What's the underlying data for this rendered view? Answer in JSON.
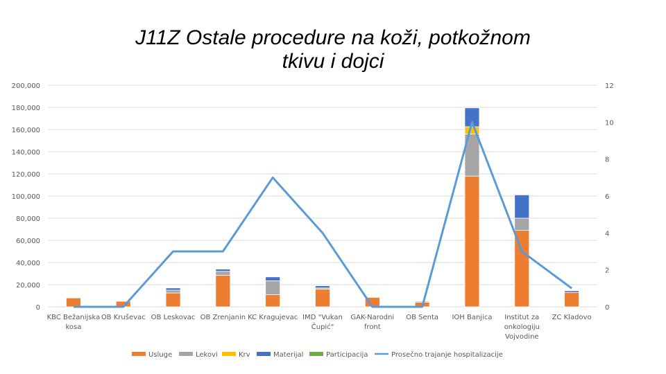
{
  "chart_data": {
    "type": "bar",
    "subtype": "stacked-bar-with-line-secondary-axis",
    "title": "J11Z Ostale procedure na koži, potkožnom tkivu i dojci",
    "title_lines": [
      "J11Z Ostale procedure na koži, potkožnom",
      "tkivu i dojci"
    ],
    "xlabel": "",
    "ylabel": "",
    "ylim": [
      0,
      200000
    ],
    "y_ticks": [
      0,
      20000,
      40000,
      60000,
      80000,
      100000,
      120000,
      140000,
      160000,
      180000,
      200000
    ],
    "y_tick_labels": [
      "0",
      "20,000",
      "40,000",
      "60,000",
      "80,000",
      "100,000",
      "120,000",
      "140,000",
      "160,000",
      "180,000",
      "200,000"
    ],
    "y2lim": [
      0,
      12
    ],
    "y2_ticks": [
      0,
      2,
      4,
      6,
      8,
      10,
      12
    ],
    "y2_tick_labels": [
      "0",
      "2",
      "4",
      "6",
      "8",
      "10",
      "12"
    ],
    "grid": true,
    "legend_position": "bottom",
    "categories": [
      "KBC Bežanijska kosa",
      "OB Kruševac",
      "OB Leskovac",
      "OB Zrenjanin",
      "KC Kragujevac",
      "IMD \"Vukan Čupić\"",
      "GAK-Narodni front",
      "OB Senta",
      "IOH Banjica",
      "Institut za onkologiju Vojvodine",
      "ZC Kladovo"
    ],
    "category_label_lines": [
      [
        "KBC Bežanijska",
        "kosa"
      ],
      [
        "OB Kruševac"
      ],
      [
        "OB Leskovac"
      ],
      [
        "OB Zrenjanin"
      ],
      [
        "KC Kragujevac"
      ],
      [
        "IMD \"Vukan",
        "Čupić\""
      ],
      [
        "GAK-Narodni",
        "front"
      ],
      [
        "OB Senta"
      ],
      [
        "IOH Banjica"
      ],
      [
        "Institut za",
        "onkologiju",
        "Vojvodine"
      ],
      [
        "ZC Kladovo"
      ]
    ],
    "series": [
      {
        "name": "Usluge",
        "type": "bar",
        "axis": "primary",
        "color": "#ED7D31",
        "values": [
          8000,
          5000,
          12500,
          28500,
          11000,
          16000,
          8500,
          4000,
          118000,
          69000,
          13000
        ]
      },
      {
        "name": "Lekovi",
        "type": "bar",
        "axis": "primary",
        "color": "#A5A5A5",
        "values": [
          0,
          0,
          2500,
          3500,
          12500,
          1000,
          0,
          1000,
          38000,
          11000,
          0
        ]
      },
      {
        "name": "Krv",
        "type": "bar",
        "axis": "primary",
        "color": "#FFC000",
        "values": [
          0,
          0,
          0,
          0,
          0,
          0,
          0,
          0,
          6500,
          0,
          0
        ]
      },
      {
        "name": "Materijal",
        "type": "bar",
        "axis": "primary",
        "color": "#4472C4",
        "values": [
          0,
          0,
          2000,
          2000,
          3500,
          2000,
          0,
          500,
          17000,
          21000,
          1500
        ]
      },
      {
        "name": "Participacija",
        "type": "bar",
        "axis": "primary",
        "color": "#70AD47",
        "values": [
          0,
          0,
          0,
          0,
          0,
          0,
          0,
          0,
          0,
          0,
          0
        ]
      },
      {
        "name": "Prosečno trajanje hospitalizacije",
        "type": "line",
        "axis": "secondary",
        "color": "#5B9BD5",
        "values": [
          0,
          0,
          3,
          3,
          7,
          4,
          0,
          0,
          10,
          3,
          1
        ]
      }
    ]
  }
}
